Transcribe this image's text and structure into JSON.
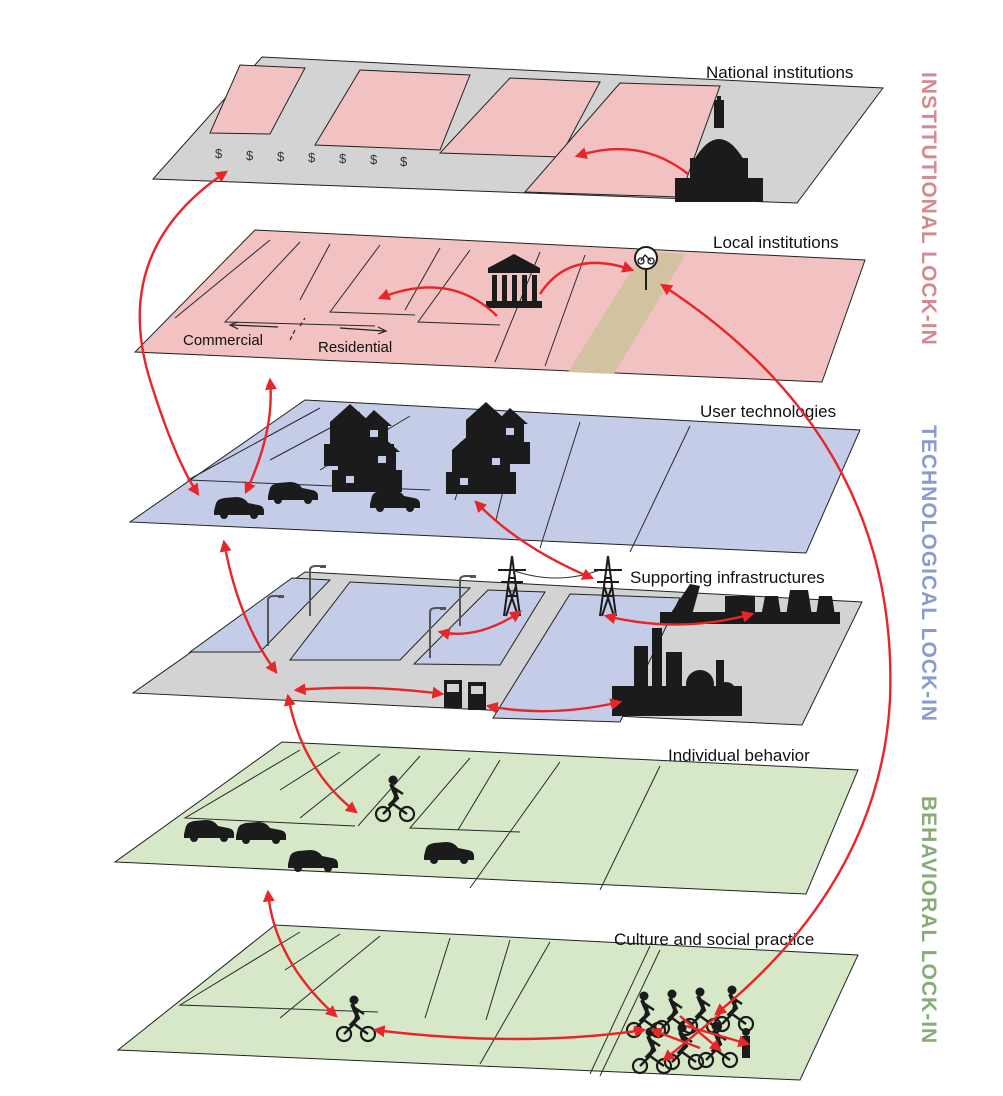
{
  "layers": {
    "national": {
      "label": "National institutions"
    },
    "local": {
      "label": "Local institutions",
      "zone_left": "Commercial",
      "zone_right": "Residential"
    },
    "user_tech": {
      "label": "User technologies"
    },
    "infrastructure": {
      "label": "Supporting infrastructures"
    },
    "behavior": {
      "label": "Individual behavior"
    },
    "culture": {
      "label": "Culture and social practice"
    }
  },
  "lock_ins": {
    "institutional": {
      "label": "INSTITUTIONAL LOCK-IN",
      "color": "#d48a92"
    },
    "technological": {
      "label": "TECHNOLOGICAL LOCK-IN",
      "color": "#8a9bd0"
    },
    "behavioral": {
      "label": "BEHAVIORAL LOCK-IN",
      "color": "#86ad78"
    }
  },
  "symbols": {
    "dollar": "$"
  },
  "colors": {
    "institutional_fill": "#f2c1c1",
    "technological_fill": "#c4cce8",
    "behavioral_fill": "#d6e8c7",
    "road_fill": "#d3d3d3",
    "bike_lane_fill": "#d2c2a0",
    "arrow": "#e8262a"
  }
}
